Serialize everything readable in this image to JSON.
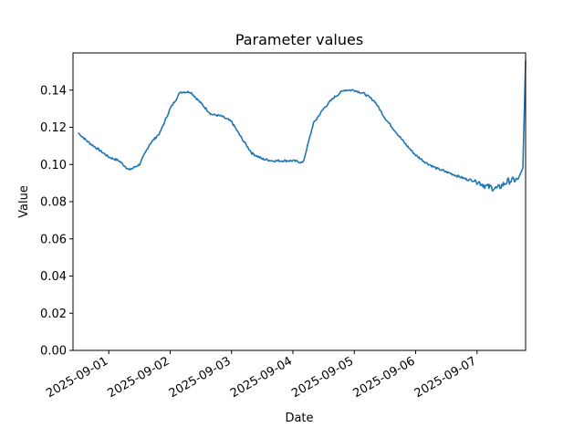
{
  "chart_data": {
    "type": "line",
    "title": "Parameter values",
    "xlabel": "Date",
    "ylabel": "Value",
    "xlim": [
      "2025-08-31T10:00",
      "2025-09-07T19:00"
    ],
    "ylim": [
      0,
      0.16
    ],
    "x_ticks": [
      "2025-09-01",
      "2025-09-02",
      "2025-09-03",
      "2025-09-04",
      "2025-09-05",
      "2025-09-06",
      "2025-09-07"
    ],
    "y_ticks": [
      "0.00",
      "0.02",
      "0.04",
      "0.06",
      "0.08",
      "0.10",
      "0.12",
      "0.14"
    ],
    "grid": false,
    "legend": "none",
    "series": [
      {
        "color": "#1f77b4",
        "x": [
          "2025-08-31T12:00",
          "2025-08-31T16:00",
          "2025-08-31T20:00",
          "2025-09-01T00:00",
          "2025-09-01T04:00",
          "2025-09-01T08:00",
          "2025-09-01T12:00",
          "2025-09-01T16:00",
          "2025-09-01T20:00",
          "2025-09-02T00:00",
          "2025-09-02T04:00",
          "2025-09-02T08:00",
          "2025-09-02T12:00",
          "2025-09-02T16:00",
          "2025-09-02T20:00",
          "2025-09-03T00:00",
          "2025-09-03T04:00",
          "2025-09-03T08:00",
          "2025-09-03T12:00",
          "2025-09-03T16:00",
          "2025-09-03T20:00",
          "2025-09-04T00:00",
          "2025-09-04T04:00",
          "2025-09-04T08:00",
          "2025-09-04T12:00",
          "2025-09-04T16:00",
          "2025-09-04T20:00",
          "2025-09-05T00:00",
          "2025-09-05T04:00",
          "2025-09-05T08:00",
          "2025-09-05T12:00",
          "2025-09-05T16:00",
          "2025-09-05T20:00",
          "2025-09-06T00:00",
          "2025-09-06T04:00",
          "2025-09-06T08:00",
          "2025-09-06T12:00",
          "2025-09-06T16:00",
          "2025-09-06T20:00",
          "2025-09-07T00:00",
          "2025-09-07T04:00",
          "2025-09-07T08:00",
          "2025-09-07T12:00",
          "2025-09-07T16:00"
        ],
        "y": [
          0.117,
          0.112,
          0.108,
          0.104,
          0.102,
          0.097,
          0.1,
          0.111,
          0.117,
          0.13,
          0.139,
          0.139,
          0.133,
          0.127,
          0.126,
          0.123,
          0.114,
          0.106,
          0.103,
          0.102,
          0.102,
          0.102,
          0.101,
          0.122,
          0.13,
          0.136,
          0.14,
          0.14,
          0.138,
          0.134,
          0.125,
          0.118,
          0.111,
          0.105,
          0.101,
          0.098,
          0.096,
          0.094,
          0.092,
          0.091,
          0.088,
          0.087,
          0.091,
          0.092
        ]
      }
    ]
  }
}
